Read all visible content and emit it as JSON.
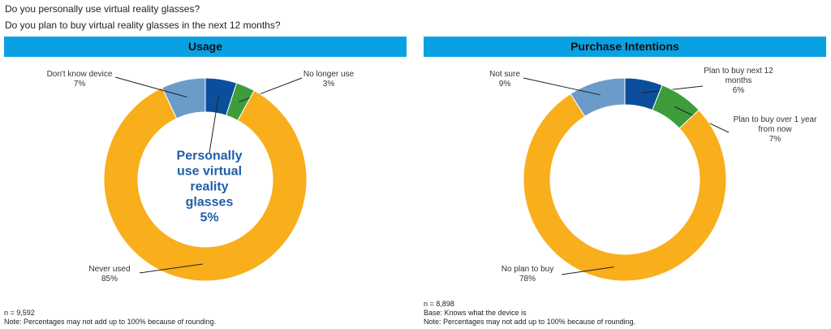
{
  "header": {
    "lines": [
      "Do you personally use virtual reality glasses?",
      "Do you plan to buy virtual reality glasses in the next 12 months?"
    ]
  },
  "chart_data": [
    {
      "type": "donut",
      "title": "Usage",
      "categories": [
        "Personally use virtual reality glasses",
        "No longer use",
        "Never used",
        "Don't know device"
      ],
      "values": [
        5,
        3,
        85,
        7
      ],
      "value_labels": [
        "5%",
        "3%",
        "85%",
        "7%"
      ],
      "colors": [
        "#0b4f9c",
        "#3c9d3a",
        "#f9ae1b",
        "#6b9bc9"
      ],
      "notes": [
        "n = 9,592",
        "Note: Percentages may not add up to 100% because of rounding."
      ]
    },
    {
      "type": "donut",
      "title": "Purchase Intentions",
      "categories": [
        "Plan to buy next 12 months",
        "Plan to buy over 1 year from now",
        "No plan to buy",
        "Not sure"
      ],
      "values": [
        6,
        7,
        78,
        9
      ],
      "value_labels": [
        "6%",
        "7%",
        "78%",
        "9%"
      ],
      "colors": [
        "#0b4f9c",
        "#3c9d3a",
        "#f9ae1b",
        "#6b9bc9"
      ],
      "notes": [
        "n = 8,898",
        "Base: Knows what the device is",
        "Note: Percentages may not add up to 100% because of rounding."
      ]
    }
  ]
}
